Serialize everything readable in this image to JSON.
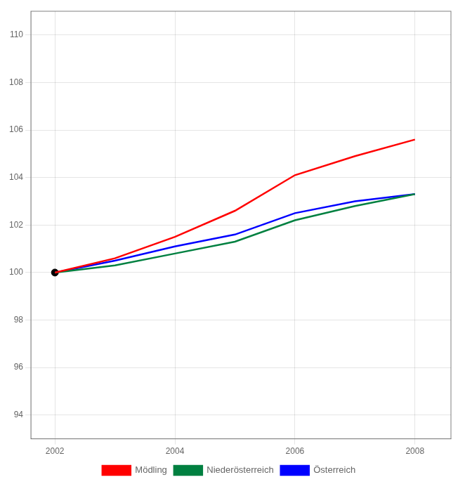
{
  "chart_data": {
    "type": "line",
    "x": [
      2002,
      2003,
      2004,
      2005,
      2006,
      2007,
      2008
    ],
    "series": [
      {
        "name": "Mödling",
        "color": "#ff0000",
        "values": [
          100.0,
          100.6,
          101.5,
          102.6,
          104.1,
          104.9,
          105.6
        ]
      },
      {
        "name": "Niederösterreich",
        "color": "#008040",
        "values": [
          100.0,
          100.3,
          100.8,
          101.3,
          102.2,
          102.8,
          103.3
        ]
      },
      {
        "name": "Österreich",
        "color": "#0000ff",
        "values": [
          100.0,
          100.5,
          101.1,
          101.6,
          102.5,
          103.0,
          103.3
        ]
      }
    ],
    "highlight": {
      "x": 2002,
      "y": 100.0,
      "color": "#000000",
      "marker": "circle"
    },
    "xlim": [
      2001.6,
      2008.6
    ],
    "xticks": [
      2002,
      2004,
      2006,
      2008
    ],
    "ylim": [
      93,
      111
    ],
    "yticks": [
      94,
      96,
      98,
      100,
      102,
      104,
      106,
      108,
      110
    ],
    "grid": true,
    "legend": "bottom"
  }
}
